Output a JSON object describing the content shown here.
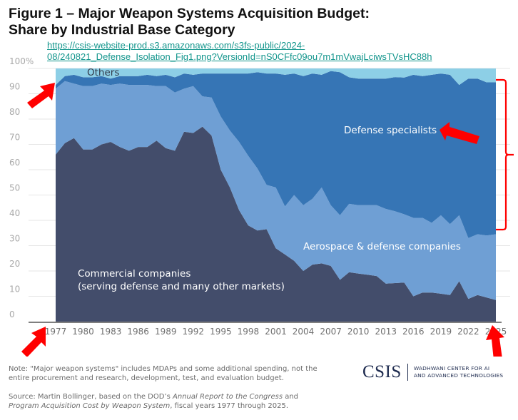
{
  "header": {
    "title_line1": "Figure 1 – Major Weapon Systems Acquisition Budget:",
    "title_line2": "Share by Industrial Base Category",
    "url_line1": "https://csis-website-prod.s3.amazonaws.com/s3fs-public/2024-",
    "url_line2": "08/240821_Defense_Isolation_Fig1.png?VersionId=nS0CFfc09ou7m1mVwajLciwsTVsHC88h"
  },
  "chart_data": {
    "type": "area",
    "stacked": true,
    "title": "Figure 1 – Major Weapon Systems Acquisition Budget: Share by Industrial Base Category",
    "xlabel": "",
    "ylabel": "",
    "ylim": [
      0,
      100
    ],
    "y_ticks": [
      "100%",
      "90",
      "80",
      "70",
      "60",
      "50",
      "40",
      "30",
      "20",
      "10",
      "0"
    ],
    "x_tick_labels": [
      "1977",
      "1980",
      "1983",
      "1986",
      "1989",
      "1992",
      "1995",
      "1998",
      "2001",
      "2004",
      "2007",
      "2010",
      "2013",
      "2016",
      "2019",
      "2022",
      "2025"
    ],
    "grid": true,
    "x": [
      1977,
      1978,
      1979,
      1980,
      1981,
      1982,
      1983,
      1984,
      1985,
      1986,
      1987,
      1988,
      1989,
      1990,
      1991,
      1992,
      1993,
      1994,
      1995,
      1996,
      1997,
      1998,
      1999,
      2000,
      2001,
      2002,
      2003,
      2004,
      2005,
      2006,
      2007,
      2008,
      2009,
      2010,
      2011,
      2012,
      2013,
      2014,
      2015,
      2016,
      2017,
      2018,
      2019,
      2020,
      2021,
      2022,
      2023,
      2024,
      2025
    ],
    "series": [
      {
        "name": "Commercial companies",
        "color": "#434d6b",
        "values": [
          66,
          70.5,
          72.5,
          68,
          68,
          70,
          71,
          69,
          67.5,
          69,
          69,
          71.5,
          68.5,
          67.5,
          75,
          74.5,
          77,
          73.5,
          60,
          53,
          44,
          38,
          36,
          36.5,
          29,
          26.5,
          24,
          20,
          22.5,
          23,
          22,
          16.5,
          19.5,
          19,
          18.5,
          18,
          15,
          15.2,
          15.4,
          10,
          11.5,
          11.5,
          11,
          10.5,
          16,
          9,
          10.5,
          9.5,
          8.5
        ]
      },
      {
        "name": "Aerospace & defense companies",
        "color": "#6f9fd4",
        "values": [
          26,
          24.5,
          21.5,
          25,
          25,
          24,
          22.5,
          25,
          26,
          24.5,
          24.5,
          21.5,
          24.5,
          23,
          17,
          18.5,
          12,
          15,
          21,
          22.5,
          27,
          27.5,
          24.5,
          17.5,
          24,
          19,
          26,
          26,
          26,
          30,
          24,
          25.5,
          27,
          27,
          27.5,
          28,
          29.5,
          28.4,
          27,
          31,
          29.5,
          27.5,
          31,
          28,
          26,
          24,
          24,
          24.5,
          26
        ]
      },
      {
        "name": "Defense specialists",
        "color": "#3675b5",
        "values": [
          1.5,
          2,
          3.5,
          3.5,
          3.5,
          3,
          2.5,
          3,
          3.5,
          3.5,
          4,
          4,
          4.5,
          6,
          6,
          4.5,
          9,
          9.5,
          17,
          22.5,
          27,
          32.5,
          38,
          44,
          45,
          52,
          48,
          51,
          49.5,
          44.5,
          53,
          56.5,
          50,
          50,
          50,
          50,
          51.5,
          53,
          54,
          56.5,
          56,
          58.5,
          56,
          59,
          51.5,
          63,
          61.5,
          60.5,
          60
        ]
      },
      {
        "name": "Others",
        "color": "#8dcfe6",
        "values": [
          6.5,
          3,
          2.5,
          3.5,
          3.5,
          3,
          4,
          3,
          3,
          3,
          2.5,
          3,
          2.5,
          3.5,
          2,
          2.5,
          2,
          2,
          2,
          2,
          2,
          2,
          1.5,
          2,
          2,
          2.5,
          2,
          3,
          2,
          2.5,
          1,
          1.5,
          3.5,
          4,
          4,
          4,
          4,
          3.4,
          3.6,
          2.5,
          3,
          2.5,
          2,
          2.5,
          6.5,
          4,
          4,
          5.5,
          5.5
        ]
      }
    ],
    "labels": {
      "others": "Others",
      "defense": "Defense specialists",
      "aerospace": "Aerospace & defense companies",
      "commercial_line1": "Commercial companies",
      "commercial_line2": "(serving defense and many other markets)"
    },
    "annotations": [
      "red arrow at 1977 top",
      "red arrow at 1977 x-axis",
      "red arrow at 2025 x-axis",
      "red arrow pointing at Defense specialists label",
      "red bracket spanning defense specialists share in 2025"
    ]
  },
  "footer": {
    "note": "Note: \"Major weapon systems\" includes MDAPs and some additional spending, not the entire procurement and research, development, test, and evaluation budget.",
    "source_prefix": "Source: Martin Bollinger, based on the DOD’s ",
    "source_italic1": "Annual Report to the Congress",
    "source_mid": " and ",
    "source_italic2": "Program Acquisition Cost by Weapon System",
    "source_suffix": ", fiscal years 1977 through 2025.",
    "logo_main": "CSIS",
    "logo_line1": "WADHWANI CENTER FOR AI",
    "logo_line2": "AND ADVANCED TECHNOLOGIES"
  },
  "colors": {
    "annotation_red": "#ff0000",
    "link_teal": "#12958c"
  }
}
